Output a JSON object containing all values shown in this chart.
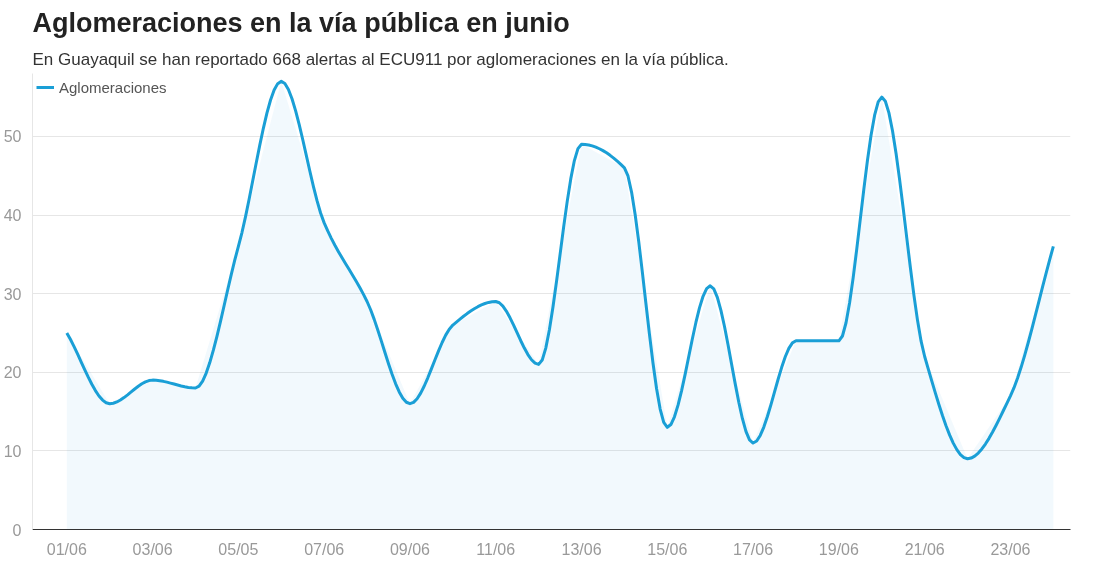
{
  "chart_data": {
    "type": "area",
    "title": "Aglomeraciones en la vía pública en junio",
    "subtitle": "En Guayaquil se han reportado 668 alertas al ECU911 por aglomeraciones en la vía pública.",
    "categories": [
      "01/06",
      null,
      "03/06",
      null,
      "05/05",
      null,
      "07/06",
      null,
      "09/06",
      null,
      "11/06",
      null,
      "13/06",
      null,
      "15/06",
      null,
      "17/06",
      null,
      "19/06",
      null,
      "21/06",
      null,
      "23/06",
      null
    ],
    "series": [
      {
        "name": "Aglomeraciones",
        "color": "#1a9fd6",
        "values": [
          25,
          16,
          19,
          18,
          36,
          57,
          39,
          29,
          16,
          26,
          29,
          21,
          49,
          46,
          13,
          31,
          11,
          24,
          24,
          55,
          22,
          9,
          17,
          36
        ]
      }
    ],
    "ylim": [
      0,
      58
    ],
    "yticks": [
      0,
      10,
      20,
      30,
      40,
      50
    ],
    "grid": "y",
    "legend": "top left"
  }
}
